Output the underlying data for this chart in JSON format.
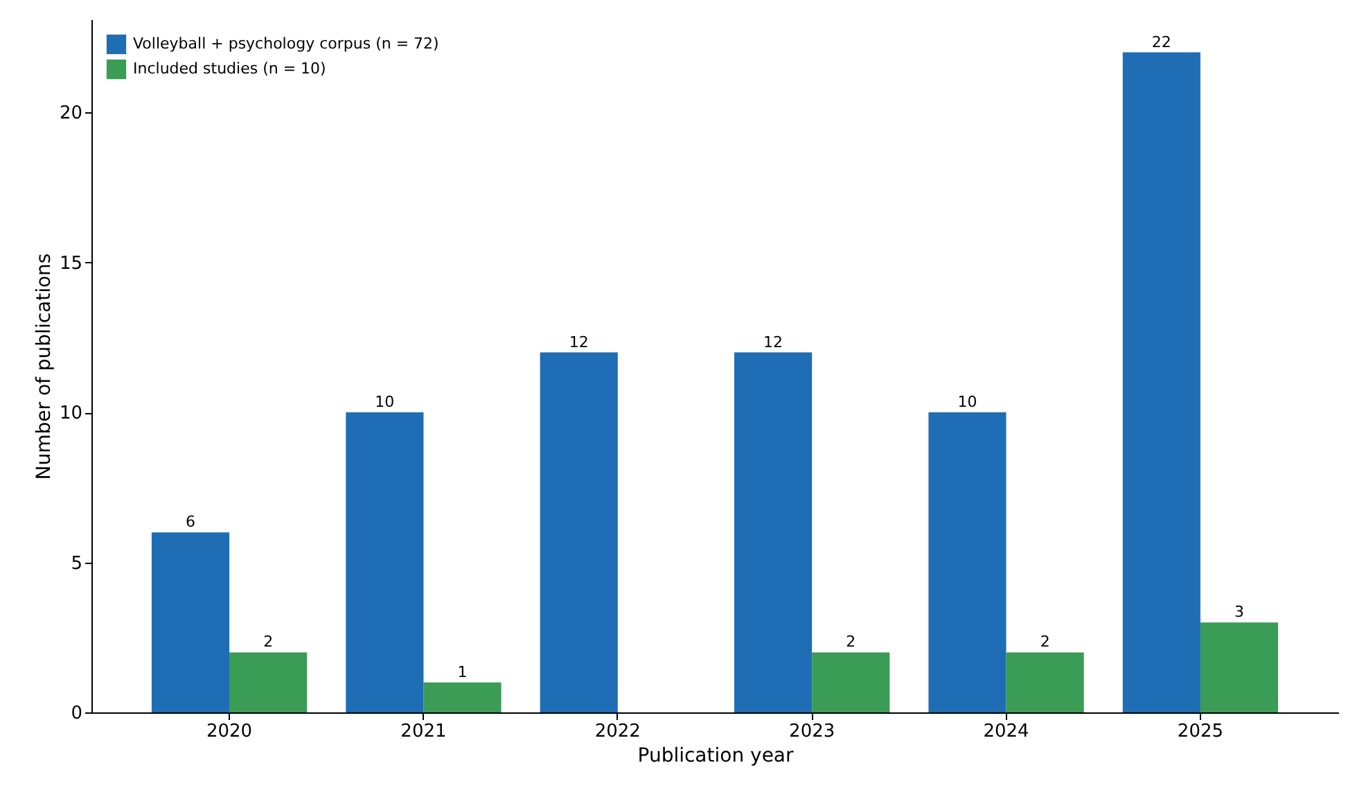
{
  "chart_data": {
    "type": "bar",
    "xlabel": "Publication year",
    "ylabel": "Number of publications",
    "categories": [
      "2020",
      "2021",
      "2022",
      "2023",
      "2024",
      "2025"
    ],
    "series": [
      {
        "name": "Volleyball + psychology corpus (n = 72)",
        "color": "#1f6db4",
        "values": [
          6,
          10,
          12,
          12,
          10,
          22
        ],
        "value_labels": [
          "6",
          "10",
          "12",
          "12",
          "10",
          "22"
        ]
      },
      {
        "name": "Included studies (n = 10)",
        "color": "#3a9c55",
        "values": [
          2,
          1,
          0,
          2,
          2,
          3
        ],
        "value_labels": [
          "2",
          "1",
          null,
          "2",
          "2",
          "3"
        ]
      }
    ],
    "ylim": [
      0,
      23.1
    ],
    "yticks": [
      0,
      5,
      10,
      15,
      20
    ],
    "grid": false,
    "legend": "top left"
  }
}
